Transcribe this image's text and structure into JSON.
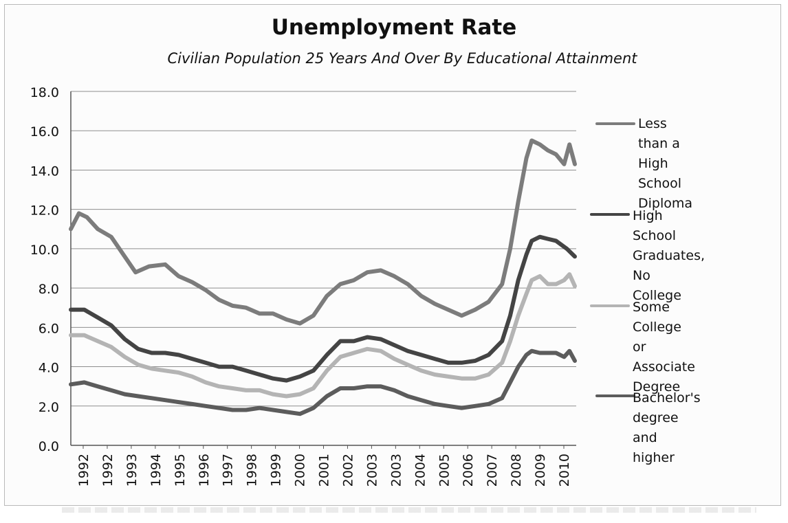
{
  "chart_data": {
    "type": "line",
    "title": "Unemployment Rate",
    "subtitle": "Civilian Population 25 Years And Over By Educational Attainment",
    "xlabel": "",
    "ylabel": "",
    "ylim": [
      0,
      18
    ],
    "xlim": [
      1992,
      2010.75
    ],
    "y_ticks": [
      "0.0",
      "2.0",
      "4.0",
      "6.0",
      "8.0",
      "10.0",
      "12.0",
      "14.0",
      "16.0",
      "18.0"
    ],
    "x_tick_labels": [
      "1992",
      "1992",
      "1993",
      "1994",
      "1995",
      "1996",
      "1997",
      "1998",
      "1999",
      "2000",
      "2001",
      "2002",
      "2003",
      "2003",
      "2004",
      "2005",
      "2006",
      "2007",
      "2008",
      "2009",
      "2010"
    ],
    "grid": true,
    "legend_position": "right",
    "series": [
      {
        "name": "Less than a High School Diploma",
        "color": "#7c7c7c",
        "points": [
          [
            1992.0,
            11.0
          ],
          [
            1992.3,
            11.8
          ],
          [
            1992.6,
            11.6
          ],
          [
            1993.0,
            11.0
          ],
          [
            1993.5,
            10.6
          ],
          [
            1994.0,
            9.6
          ],
          [
            1994.4,
            8.8
          ],
          [
            1994.9,
            9.1
          ],
          [
            1995.5,
            9.2
          ],
          [
            1996.0,
            8.6
          ],
          [
            1996.5,
            8.3
          ],
          [
            1997.0,
            7.9
          ],
          [
            1997.5,
            7.4
          ],
          [
            1998.0,
            7.1
          ],
          [
            1998.5,
            7.0
          ],
          [
            1999.0,
            6.7
          ],
          [
            1999.5,
            6.7
          ],
          [
            2000.0,
            6.4
          ],
          [
            2000.5,
            6.2
          ],
          [
            2001.0,
            6.6
          ],
          [
            2001.5,
            7.6
          ],
          [
            2002.0,
            8.2
          ],
          [
            2002.5,
            8.4
          ],
          [
            2003.0,
            8.8
          ],
          [
            2003.5,
            8.9
          ],
          [
            2004.0,
            8.6
          ],
          [
            2004.5,
            8.2
          ],
          [
            2005.0,
            7.6
          ],
          [
            2005.5,
            7.2
          ],
          [
            2006.0,
            6.9
          ],
          [
            2006.5,
            6.6
          ],
          [
            2007.0,
            6.9
          ],
          [
            2007.5,
            7.3
          ],
          [
            2008.0,
            8.2
          ],
          [
            2008.3,
            10.0
          ],
          [
            2008.6,
            12.4
          ],
          [
            2008.9,
            14.6
          ],
          [
            2009.1,
            15.5
          ],
          [
            2009.4,
            15.3
          ],
          [
            2009.7,
            15.0
          ],
          [
            2010.0,
            14.8
          ],
          [
            2010.3,
            14.3
          ],
          [
            2010.5,
            15.3
          ],
          [
            2010.7,
            14.3
          ]
        ]
      },
      {
        "name": "High School Graduates, No College",
        "color": "#444444",
        "points": [
          [
            1992.0,
            6.9
          ],
          [
            1992.5,
            6.9
          ],
          [
            1993.0,
            6.5
          ],
          [
            1993.5,
            6.1
          ],
          [
            1994.0,
            5.4
          ],
          [
            1994.5,
            4.9
          ],
          [
            1995.0,
            4.7
          ],
          [
            1995.5,
            4.7
          ],
          [
            1996.0,
            4.6
          ],
          [
            1996.5,
            4.4
          ],
          [
            1997.0,
            4.2
          ],
          [
            1997.5,
            4.0
          ],
          [
            1998.0,
            4.0
          ],
          [
            1998.5,
            3.8
          ],
          [
            1999.0,
            3.6
          ],
          [
            1999.5,
            3.4
          ],
          [
            2000.0,
            3.3
          ],
          [
            2000.5,
            3.5
          ],
          [
            2001.0,
            3.8
          ],
          [
            2001.5,
            4.6
          ],
          [
            2002.0,
            5.3
          ],
          [
            2002.5,
            5.3
          ],
          [
            2003.0,
            5.5
          ],
          [
            2003.5,
            5.4
          ],
          [
            2004.0,
            5.1
          ],
          [
            2004.5,
            4.8
          ],
          [
            2005.0,
            4.6
          ],
          [
            2005.5,
            4.4
          ],
          [
            2006.0,
            4.2
          ],
          [
            2006.5,
            4.2
          ],
          [
            2007.0,
            4.3
          ],
          [
            2007.5,
            4.6
          ],
          [
            2008.0,
            5.3
          ],
          [
            2008.3,
            6.6
          ],
          [
            2008.6,
            8.4
          ],
          [
            2008.9,
            9.7
          ],
          [
            2009.1,
            10.4
          ],
          [
            2009.4,
            10.6
          ],
          [
            2009.7,
            10.5
          ],
          [
            2010.0,
            10.4
          ],
          [
            2010.4,
            10.0
          ],
          [
            2010.7,
            9.6
          ]
        ]
      },
      {
        "name": "Some College or Associate Degree",
        "color": "#b4b4b4",
        "points": [
          [
            1992.0,
            5.6
          ],
          [
            1992.5,
            5.6
          ],
          [
            1993.0,
            5.3
          ],
          [
            1993.5,
            5.0
          ],
          [
            1994.0,
            4.5
          ],
          [
            1994.5,
            4.1
          ],
          [
            1995.0,
            3.9
          ],
          [
            1995.5,
            3.8
          ],
          [
            1996.0,
            3.7
          ],
          [
            1996.5,
            3.5
          ],
          [
            1997.0,
            3.2
          ],
          [
            1997.5,
            3.0
          ],
          [
            1998.0,
            2.9
          ],
          [
            1998.5,
            2.8
          ],
          [
            1999.0,
            2.8
          ],
          [
            1999.5,
            2.6
          ],
          [
            2000.0,
            2.5
          ],
          [
            2000.5,
            2.6
          ],
          [
            2001.0,
            2.9
          ],
          [
            2001.5,
            3.8
          ],
          [
            2002.0,
            4.5
          ],
          [
            2002.5,
            4.7
          ],
          [
            2003.0,
            4.9
          ],
          [
            2003.5,
            4.8
          ],
          [
            2004.0,
            4.4
          ],
          [
            2004.5,
            4.1
          ],
          [
            2005.0,
            3.8
          ],
          [
            2005.5,
            3.6
          ],
          [
            2006.0,
            3.5
          ],
          [
            2006.5,
            3.4
          ],
          [
            2007.0,
            3.4
          ],
          [
            2007.5,
            3.6
          ],
          [
            2008.0,
            4.2
          ],
          [
            2008.3,
            5.3
          ],
          [
            2008.6,
            6.6
          ],
          [
            2008.9,
            7.7
          ],
          [
            2009.1,
            8.4
          ],
          [
            2009.4,
            8.6
          ],
          [
            2009.7,
            8.2
          ],
          [
            2010.0,
            8.2
          ],
          [
            2010.3,
            8.4
          ],
          [
            2010.5,
            8.7
          ],
          [
            2010.7,
            8.1
          ]
        ]
      },
      {
        "name": "Bachelor's degree and higher",
        "color": "#5c5c5c",
        "points": [
          [
            1992.0,
            3.1
          ],
          [
            1992.5,
            3.2
          ],
          [
            1993.0,
            3.0
          ],
          [
            1993.5,
            2.8
          ],
          [
            1994.0,
            2.6
          ],
          [
            1994.5,
            2.5
          ],
          [
            1995.0,
            2.4
          ],
          [
            1995.5,
            2.3
          ],
          [
            1996.0,
            2.2
          ],
          [
            1996.5,
            2.1
          ],
          [
            1997.0,
            2.0
          ],
          [
            1997.5,
            1.9
          ],
          [
            1998.0,
            1.8
          ],
          [
            1998.5,
            1.8
          ],
          [
            1999.0,
            1.9
          ],
          [
            1999.5,
            1.8
          ],
          [
            2000.0,
            1.7
          ],
          [
            2000.5,
            1.6
          ],
          [
            2001.0,
            1.9
          ],
          [
            2001.5,
            2.5
          ],
          [
            2002.0,
            2.9
          ],
          [
            2002.5,
            2.9
          ],
          [
            2003.0,
            3.0
          ],
          [
            2003.5,
            3.0
          ],
          [
            2004.0,
            2.8
          ],
          [
            2004.5,
            2.5
          ],
          [
            2005.0,
            2.3
          ],
          [
            2005.5,
            2.1
          ],
          [
            2006.0,
            2.0
          ],
          [
            2006.5,
            1.9
          ],
          [
            2007.0,
            2.0
          ],
          [
            2007.5,
            2.1
          ],
          [
            2008.0,
            2.4
          ],
          [
            2008.3,
            3.2
          ],
          [
            2008.6,
            4.0
          ],
          [
            2008.9,
            4.6
          ],
          [
            2009.1,
            4.8
          ],
          [
            2009.4,
            4.7
          ],
          [
            2009.7,
            4.7
          ],
          [
            2010.0,
            4.7
          ],
          [
            2010.3,
            4.5
          ],
          [
            2010.5,
            4.8
          ],
          [
            2010.7,
            4.3
          ]
        ]
      }
    ],
    "legend": [
      {
        "label": "Less than a High\nSchool Diploma"
      },
      {
        "label": "High School\nGraduates, No\nCollege"
      },
      {
        "label": "Some College or\nAssociate Degree"
      },
      {
        "label": "Bachelor's degree\nand higher"
      }
    ]
  }
}
